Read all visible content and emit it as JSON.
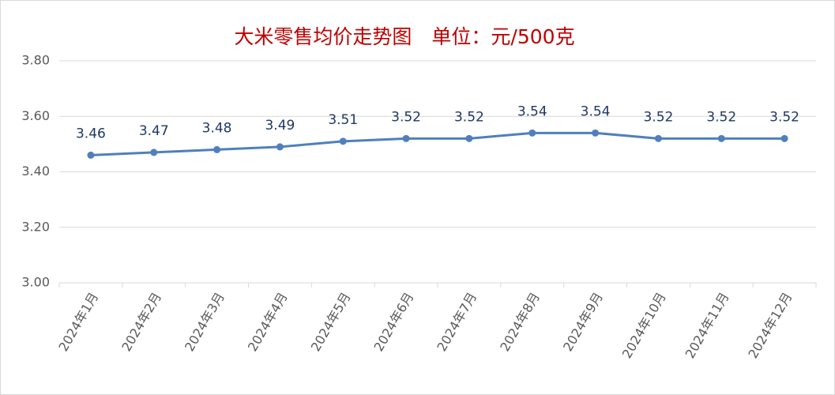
{
  "chart_data": {
    "type": "line",
    "title": "大米零售均价走势图　单位：元/500克",
    "categories": [
      "2024年1月",
      "2024年2月",
      "2024年3月",
      "2024年4月",
      "2024年5月",
      "2024年6月",
      "2024年7月",
      "2024年8月",
      "2024年9月",
      "2024年10月",
      "2024年11月",
      "2024年12月"
    ],
    "series": [
      {
        "name": "大米零售均价",
        "color": "#4f7fbf",
        "values": [
          3.46,
          3.47,
          3.48,
          3.49,
          3.51,
          3.52,
          3.52,
          3.54,
          3.54,
          3.52,
          3.52,
          3.52
        ]
      }
    ],
    "ylim": [
      3.0,
      3.8
    ],
    "yticks": [
      {
        "value": 3.0,
        "label": "3.00"
      },
      {
        "value": 3.2,
        "label": "3.20"
      },
      {
        "value": 3.4,
        "label": "3.40"
      },
      {
        "value": 3.6,
        "label": "3.60"
      },
      {
        "value": 3.8,
        "label": "3.80"
      }
    ],
    "grid": true
  }
}
